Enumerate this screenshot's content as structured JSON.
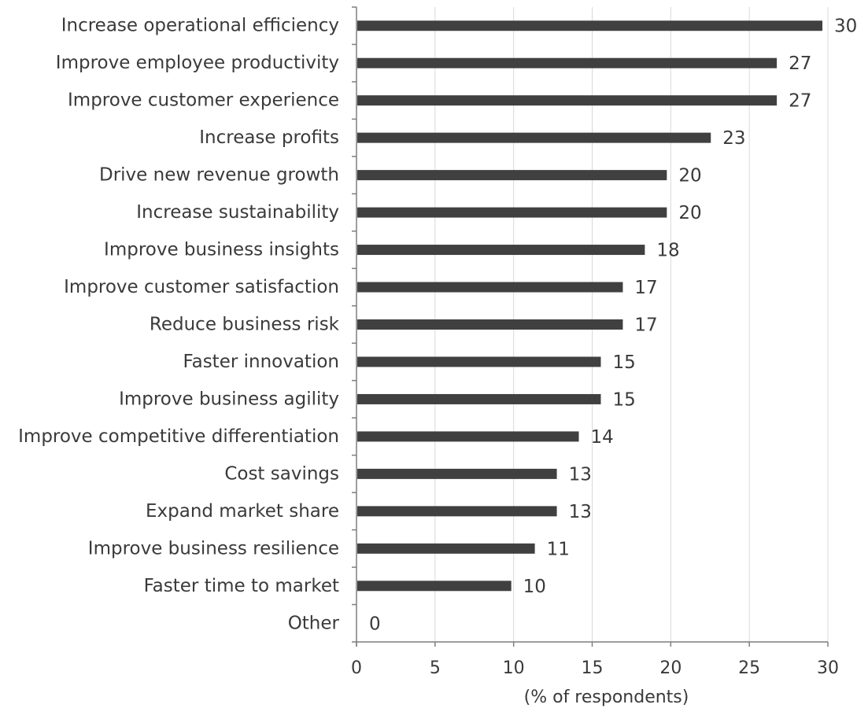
{
  "chart_data": {
    "type": "bar",
    "orientation": "horizontal",
    "categories": [
      "Increase operational efficiency",
      "Improve employee productivity",
      "Improve customer experience",
      "Increase profits",
      "Drive new revenue growth",
      "Increase sustainability",
      "Improve business insights",
      "Improve customer satisfaction",
      "Reduce business risk",
      "Faster innovation",
      "Improve business agility",
      "Improve competitive differentiation",
      "Cost savings",
      "Expand market share",
      "Improve business resilience",
      "Faster time to market",
      "Other"
    ],
    "values": [
      30,
      27,
      27,
      23,
      20,
      20,
      18,
      17,
      17,
      15,
      15,
      14,
      13,
      13,
      11,
      10,
      0
    ],
    "bar_lengths": [
      29.6,
      26.7,
      26.7,
      22.5,
      19.7,
      19.7,
      18.3,
      16.9,
      16.9,
      15.5,
      15.5,
      14.1,
      12.7,
      12.7,
      11.3,
      9.8,
      0
    ],
    "xlabel": "(% of respondents)",
    "ylabel": "",
    "xlim": [
      0,
      30
    ],
    "xticks": [
      "0",
      "5",
      "10",
      "15",
      "20",
      "25",
      "30"
    ],
    "grid": "vertical",
    "legend": "none",
    "bar_color": "#404040",
    "grid_color": "#d9d9d9",
    "axis_color": "#7f7f7f"
  }
}
